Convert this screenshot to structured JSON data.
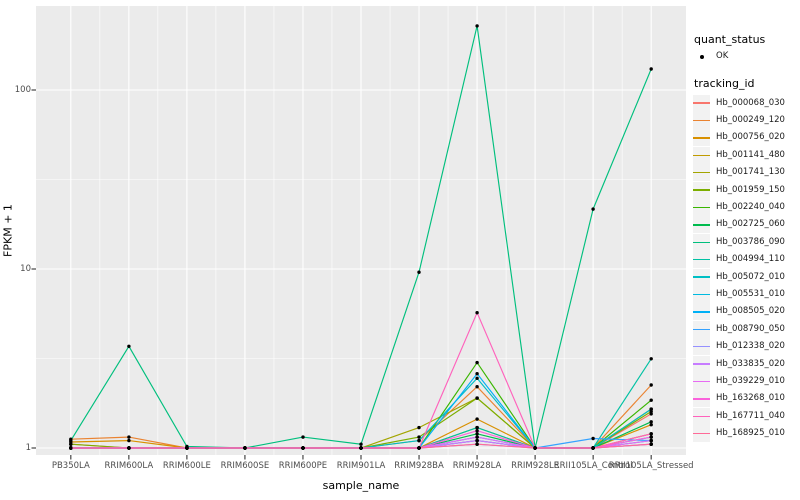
{
  "figure": {
    "background": "#FFFFFF",
    "panel_background": "#EBEBEB",
    "gridline_color": "#FFFFFF",
    "tick_color": "#333333",
    "axis_text_color": "#4D4D4D",
    "point_color": "#000000"
  },
  "axes": {
    "x_title": "sample_name",
    "y_title": "FPKM + 1",
    "y_tick_labels": [
      "1",
      "10",
      "100"
    ]
  },
  "legend": {
    "quant_status_title": "quant_status",
    "quant_status_items": [
      {
        "label": "OK"
      }
    ],
    "tracking_title": "tracking_id"
  },
  "chart_data": {
    "type": "line",
    "title": "",
    "xlabel": "sample_name",
    "ylabel": "FPKM + 1",
    "x_type": "categorical",
    "y_scale": "log10",
    "y_ticks": [
      1,
      10,
      100
    ],
    "y_minor_ticks": [
      3.162,
      31.62
    ],
    "ylim": [
      0.91,
      295
    ],
    "grid": true,
    "legend_position": "right",
    "point_marker": "black-dot",
    "categories": [
      "PB350LA",
      "RRIM600LA",
      "RRIM600LE",
      "RRIM600SE",
      "RRIM600PE",
      "RRIM901LA",
      "RRIM928BA",
      "RRIM928LA",
      "RRIM928LE",
      "RRII105LA_Control",
      "RRII105LA_Stressed"
    ],
    "series": [
      {
        "name": "Hb_000068_030",
        "color": "#F8766D",
        "values": [
          1.05,
          1.0,
          1.0,
          1.0,
          1.0,
          1.0,
          1.0,
          1.1,
          1.0,
          1.0,
          1.55
        ]
      },
      {
        "name": "Hb_000249_120",
        "color": "#EA8331",
        "values": [
          1.12,
          1.15,
          1.0,
          1.0,
          1.0,
          1.0,
          1.1,
          2.2,
          1.0,
          1.0,
          2.25
        ]
      },
      {
        "name": "Hb_000756_020",
        "color": "#D89000",
        "values": [
          1.08,
          1.1,
          1.0,
          1.0,
          1.0,
          1.0,
          1.0,
          1.45,
          1.0,
          1.0,
          1.35
        ]
      },
      {
        "name": "Hb_001141_480",
        "color": "#C09B00",
        "values": [
          1.0,
          1.0,
          1.0,
          1.0,
          1.0,
          1.0,
          1.0,
          1.3,
          1.0,
          1.0,
          1.2
        ]
      },
      {
        "name": "Hb_001741_130",
        "color": "#A3A500",
        "values": [
          1.0,
          1.0,
          1.0,
          1.0,
          1.0,
          1.0,
          1.3,
          1.9,
          1.0,
          1.0,
          1.65
        ]
      },
      {
        "name": "Hb_001959_150",
        "color": "#7CAE00",
        "values": [
          1.05,
          1.0,
          1.0,
          1.0,
          1.0,
          1.0,
          1.15,
          1.9,
          1.0,
          1.0,
          1.6
        ]
      },
      {
        "name": "Hb_002240_040",
        "color": "#39B600",
        "values": [
          1.0,
          1.0,
          1.0,
          1.0,
          1.0,
          1.0,
          1.0,
          3.0,
          1.0,
          1.0,
          1.85
        ]
      },
      {
        "name": "Hb_002725_060",
        "color": "#00BB4E",
        "values": [
          1.0,
          1.0,
          1.0,
          1.0,
          1.0,
          1.0,
          1.0,
          1.2,
          1.0,
          1.0,
          1.4
        ]
      },
      {
        "name": "Hb_003786_090",
        "color": "#00BF7D",
        "values": [
          1.1,
          3.7,
          1.02,
          1.0,
          1.15,
          1.05,
          9.6,
          228,
          1.0,
          21.6,
          131
        ]
      },
      {
        "name": "Hb_004994_110",
        "color": "#00C1A3",
        "values": [
          1.0,
          1.0,
          1.0,
          1.0,
          1.0,
          1.0,
          1.0,
          1.3,
          1.0,
          1.0,
          3.15
        ]
      },
      {
        "name": "Hb_005072_010",
        "color": "#00BFC4",
        "values": [
          1.0,
          1.0,
          1.0,
          1.0,
          1.0,
          1.0,
          1.1,
          2.45,
          1.0,
          1.0,
          1.65
        ]
      },
      {
        "name": "Hb_005531_010",
        "color": "#00BAE0",
        "values": [
          1.0,
          1.0,
          1.0,
          1.0,
          1.0,
          1.0,
          1.0,
          1.15,
          1.0,
          1.0,
          1.1
        ]
      },
      {
        "name": "Hb_008505_020",
        "color": "#00B0F6",
        "values": [
          1.0,
          1.0,
          1.0,
          1.0,
          1.0,
          1.0,
          1.0,
          2.6,
          1.0,
          1.0,
          1.15
        ]
      },
      {
        "name": "Hb_008790_050",
        "color": "#35A2FF",
        "values": [
          1.0,
          1.0,
          1.0,
          1.0,
          1.0,
          1.0,
          1.0,
          1.1,
          1.0,
          1.13,
          1.1
        ]
      },
      {
        "name": "Hb_012338_020",
        "color": "#9590FF",
        "values": [
          1.0,
          1.0,
          1.0,
          1.0,
          1.0,
          1.0,
          1.0,
          1.05,
          1.0,
          1.0,
          1.05
        ]
      },
      {
        "name": "Hb_033835_020",
        "color": "#C77CFF",
        "values": [
          1.0,
          1.0,
          1.0,
          1.0,
          1.0,
          1.0,
          1.0,
          1.1,
          1.0,
          1.0,
          1.05
        ]
      },
      {
        "name": "Hb_039229_010",
        "color": "#E76BF3",
        "values": [
          1.0,
          1.0,
          1.0,
          1.0,
          1.0,
          1.0,
          1.0,
          1.15,
          1.0,
          1.0,
          1.1
        ]
      },
      {
        "name": "Hb_163268_010",
        "color": "#FA62DB",
        "values": [
          1.0,
          1.0,
          1.0,
          1.0,
          1.0,
          1.0,
          1.0,
          1.25,
          1.0,
          1.0,
          1.15
        ]
      },
      {
        "name": "Hb_167711_040",
        "color": "#FF62BC",
        "values": [
          1.0,
          1.0,
          1.0,
          1.0,
          1.0,
          1.0,
          1.0,
          5.7,
          1.0,
          1.0,
          1.2
        ]
      },
      {
        "name": "Hb_168925_010",
        "color": "#FF6A98",
        "values": [
          1.0,
          1.0,
          1.0,
          1.0,
          1.0,
          1.0,
          1.0,
          1.05,
          1.0,
          1.0,
          1.05
        ]
      }
    ]
  }
}
